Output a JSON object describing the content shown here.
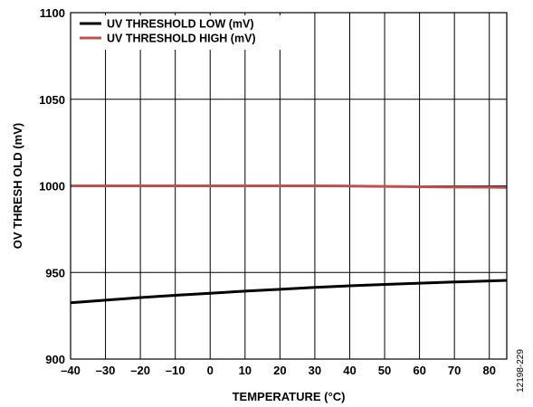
{
  "chart_data": {
    "type": "line",
    "xlabel": "TEMPERATURE (°C)",
    "ylabel": "OV THRESH OLD (mV)",
    "xlim": [
      -40,
      85
    ],
    "ylim": [
      900,
      1100
    ],
    "x_ticks": [
      -40,
      -30,
      -20,
      -10,
      0,
      10,
      20,
      30,
      40,
      50,
      60,
      70,
      80
    ],
    "x_tick_labels": [
      "–40",
      "–30",
      "–20",
      "–10",
      "0",
      "10",
      "20",
      "30",
      "40",
      "50",
      "60",
      "70",
      "80"
    ],
    "y_ticks": [
      900,
      950,
      1000,
      1050,
      1100
    ],
    "y_tick_labels": [
      "900",
      "950",
      "1000",
      "1050",
      "1100"
    ],
    "grid": true,
    "legend_position": "top-left",
    "series": [
      {
        "name": "UV THRESHOLD LOW (mV)",
        "color": "#000000",
        "x": [
          -40,
          -30,
          -20,
          -10,
          0,
          10,
          20,
          30,
          40,
          50,
          60,
          70,
          80,
          85
        ],
        "values": [
          932.5,
          934.0,
          935.5,
          936.8,
          938.0,
          939.2,
          940.3,
          941.4,
          942.3,
          943.1,
          943.8,
          944.5,
          945.1,
          945.4
        ]
      },
      {
        "name": "UV THRESHOLD HIGH (mV)",
        "color": "#c0504d",
        "x": [
          -40,
          -30,
          -20,
          -10,
          0,
          10,
          20,
          30,
          40,
          50,
          60,
          70,
          80,
          85
        ],
        "values": [
          1000.0,
          1000.0,
          1000.0,
          1000.0,
          1000.0,
          1000.0,
          1000.0,
          1000.0,
          999.9,
          999.7,
          999.5,
          999.3,
          999.2,
          999.1
        ]
      }
    ]
  },
  "figure_id": "12198-229"
}
